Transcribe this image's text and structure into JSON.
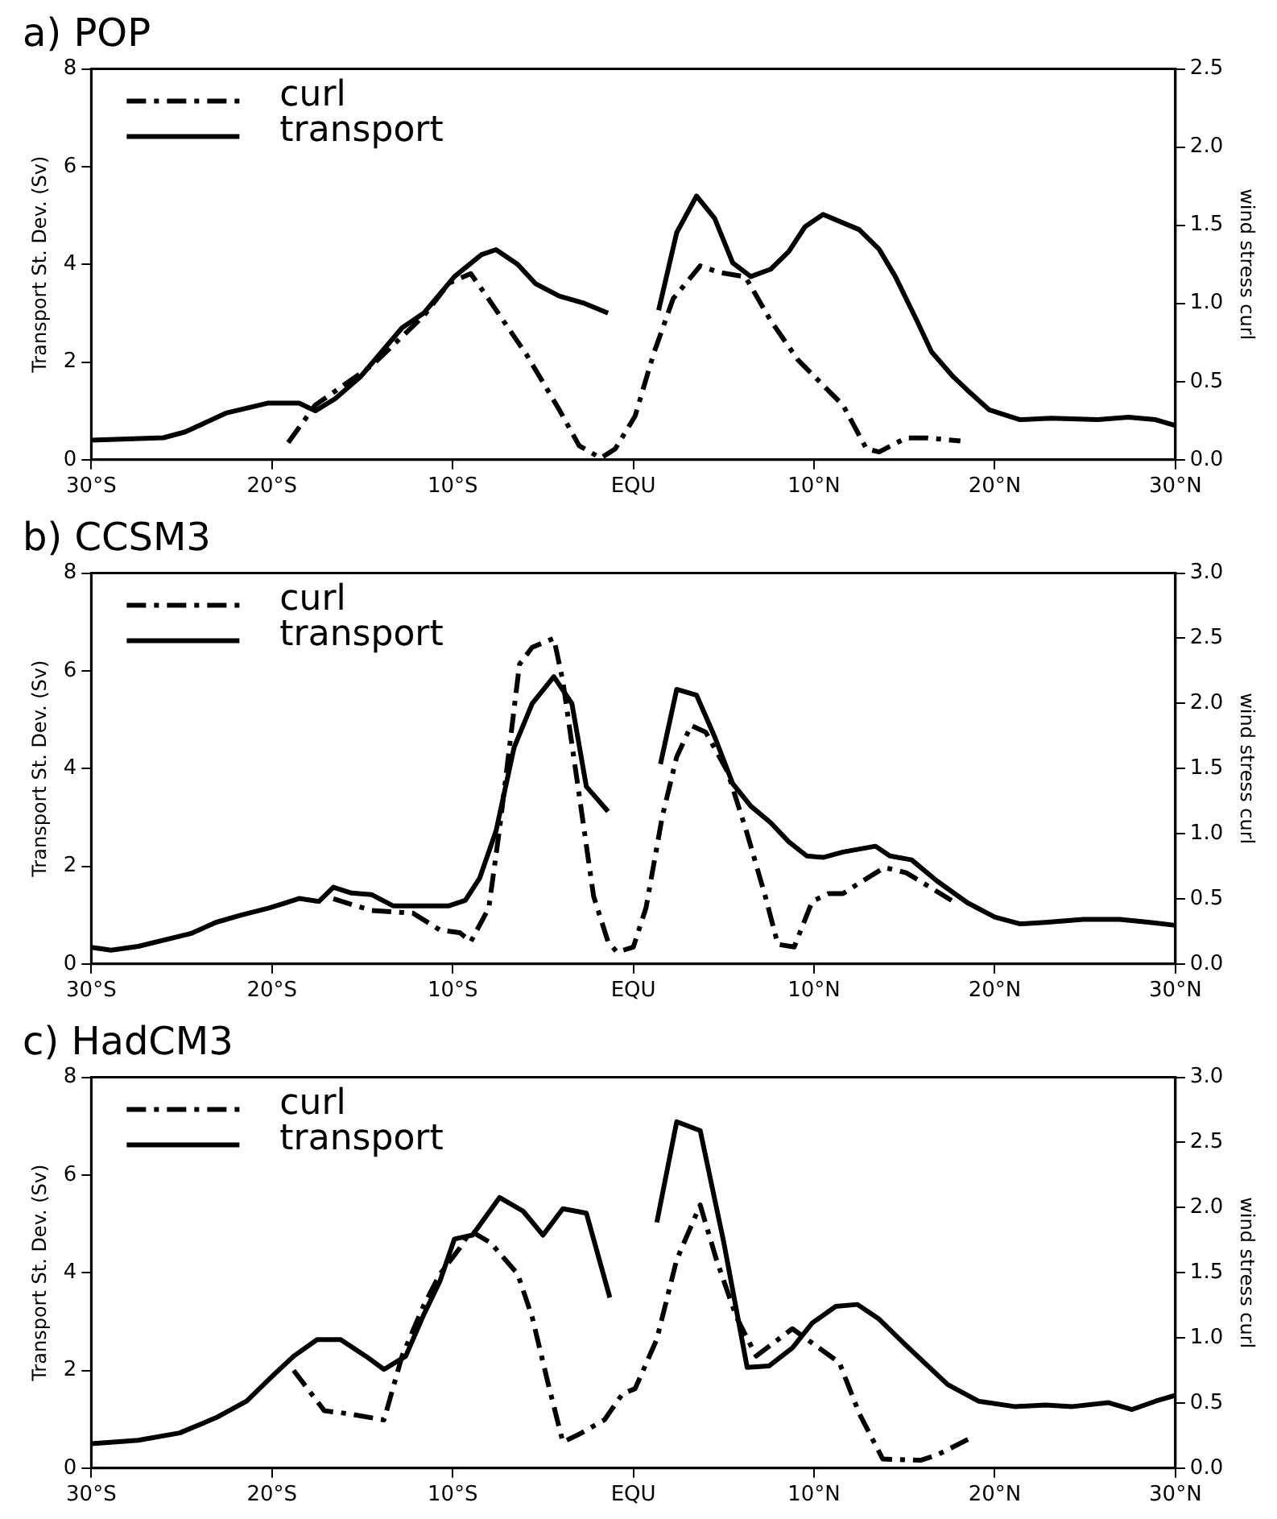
{
  "chart_data": [
    {
      "type": "line",
      "title": "a) POP",
      "ylabel": "Transport St. Dev. (Sv)",
      "y2label": "wind stress curl",
      "legend": "top left",
      "marker": "none",
      "xlim": [
        -30,
        30
      ],
      "xticks": [
        {
          "value": -30,
          "label": "30°S"
        },
        {
          "value": -20,
          "label": "20°S"
        },
        {
          "value": -10,
          "label": "10°S"
        },
        {
          "value": 0,
          "label": "EQU"
        },
        {
          "value": 10,
          "label": "10°N"
        },
        {
          "value": 20,
          "label": "20°N"
        },
        {
          "value": 30,
          "label": "30°N"
        }
      ],
      "ylim": [
        0,
        8
      ],
      "yticks": [
        0,
        2,
        4,
        6,
        8
      ],
      "y2lim": [
        0,
        2.5
      ],
      "y2ticks": [
        {
          "value": 0,
          "label": "0.0"
        },
        {
          "value": 0.5,
          "label": "0.5"
        },
        {
          "value": 1,
          "label": "1.0"
        },
        {
          "value": 1.5,
          "label": "1.5"
        },
        {
          "value": 2,
          "label": "2.0"
        },
        {
          "value": 2.5,
          "label": "2.5"
        }
      ],
      "series": [
        {
          "name": "curl",
          "color": "#000000",
          "axis": "y2",
          "line_style": "dashed",
          "x": [
            -19.1,
            -17.6,
            -14.5,
            -11.6,
            -10.2,
            -9.0,
            -8.2,
            -5.9,
            -4.1,
            -3.0,
            -1.8,
            -1.0,
            0.1,
            1.1,
            2.2,
            3.7,
            4.7,
            6.2,
            7.6,
            9.1,
            10.9,
            11.6,
            12.9,
            13.6,
            15.1,
            16.2,
            18.1
          ],
          "values": [
            0.11,
            0.35,
            0.6,
            0.92,
            1.13,
            1.19,
            1.06,
            0.67,
            0.32,
            0.09,
            0.01,
            0.07,
            0.28,
            0.67,
            1.03,
            1.24,
            1.2,
            1.17,
            0.89,
            0.64,
            0.43,
            0.35,
            0.07,
            0.05,
            0.14,
            0.14,
            0.12
          ]
        },
        {
          "name": "transport",
          "color": "#000000",
          "line_style": "solid",
          "x": [
            -30,
            -26,
            -24.8,
            -22.5,
            -20.2,
            -18.5,
            -17.6,
            -16.5,
            -15.1,
            -12.8,
            -11.6,
            -9.9,
            -8.4,
            -7.6,
            -6.4,
            -5.4,
            -4.1,
            -2.7,
            -1.4,
            0,
            1.4,
            2.4,
            3.5,
            4.5,
            5.5,
            6.5,
            7.6,
            8.6,
            9.5,
            10.5,
            12.5,
            13.6,
            14.5,
            15.7,
            16.5,
            17.7,
            18.5,
            19.7,
            21.4,
            23.1,
            25.7,
            27.4,
            28.9,
            30
          ],
          "values": [
            0.4,
            0.45,
            0.57,
            0.96,
            1.16,
            1.16,
            1.0,
            1.25,
            1.7,
            2.7,
            3.0,
            3.75,
            4.2,
            4.3,
            4.0,
            3.6,
            3.35,
            3.2,
            3.0,
            null,
            3.06,
            4.65,
            5.4,
            4.94,
            4.03,
            3.75,
            3.9,
            4.26,
            4.77,
            5.02,
            4.71,
            4.31,
            3.75,
            2.84,
            2.21,
            1.7,
            1.42,
            1.02,
            0.82,
            0.85,
            0.82,
            0.87,
            0.82,
            0.7
          ]
        }
      ]
    },
    {
      "type": "line",
      "title": "b) CCSM3",
      "ylabel": "Transport St. Dev. (Sv)",
      "y2label": "wind stress curl",
      "legend": "top left",
      "marker": "none",
      "xlim": [
        -30,
        30
      ],
      "xticks": [
        {
          "value": -30,
          "label": "30°S"
        },
        {
          "value": -20,
          "label": "20°S"
        },
        {
          "value": -10,
          "label": "10°S"
        },
        {
          "value": 0,
          "label": "EQU"
        },
        {
          "value": 10,
          "label": "10°N"
        },
        {
          "value": 20,
          "label": "20°N"
        },
        {
          "value": 30,
          "label": "30°N"
        }
      ],
      "ylim": [
        0,
        8
      ],
      "yticks": [
        0,
        2,
        4,
        6,
        8
      ],
      "y2lim": [
        0,
        3
      ],
      "y2ticks": [
        {
          "value": 0,
          "label": "0.0"
        },
        {
          "value": 0.5,
          "label": "0.5"
        },
        {
          "value": 1,
          "label": "1.0"
        },
        {
          "value": 1.5,
          "label": "1.5"
        },
        {
          "value": 2,
          "label": "2.0"
        },
        {
          "value": 2.5,
          "label": "2.5"
        },
        {
          "value": 3,
          "label": "3.0"
        }
      ],
      "series": [
        {
          "name": "curl",
          "color": "#000000",
          "axis": "y2",
          "line_style": "dashed",
          "x": [
            -16.6,
            -14.5,
            -12.2,
            -10.7,
            -9.6,
            -9.0,
            -8.0,
            -7.4,
            -6.3,
            -5.6,
            -4.4,
            -3.9,
            -3.0,
            -2.2,
            -1.4,
            -0.9,
            0,
            0.7,
            1.6,
            2.4,
            3.2,
            4.0,
            5.2,
            6.3,
            7.3,
            8.0,
            8.9,
            9.9,
            10.8,
            11.6,
            12.5,
            13.9,
            15.1,
            17.7
          ],
          "values": [
            0.5,
            0.41,
            0.39,
            0.26,
            0.24,
            0.17,
            0.43,
            1.04,
            2.3,
            2.43,
            2.5,
            2.17,
            1.3,
            0.52,
            0.17,
            0.09,
            0.13,
            0.43,
            1.13,
            1.59,
            1.83,
            1.78,
            1.48,
            1.0,
            0.52,
            0.15,
            0.13,
            0.48,
            0.54,
            0.54,
            0.62,
            0.74,
            0.7,
            0.48
          ]
        },
        {
          "name": "transport",
          "color": "#000000",
          "line_style": "solid",
          "x": [
            -30,
            -28.9,
            -27.4,
            -24.5,
            -23.1,
            -21.7,
            -20.2,
            -19.4,
            -18.5,
            -17.4,
            -16.6,
            -15.6,
            -14.5,
            -13.3,
            -11.6,
            -10.2,
            -9.3,
            -8.5,
            -7.6,
            -6.6,
            -5.6,
            -4.4,
            -3.4,
            -2.6,
            -1.4,
            0,
            1.5,
            2.4,
            3.5,
            4.5,
            5.5,
            6.5,
            7.6,
            8.6,
            9.6,
            10.5,
            11.6,
            13.4,
            14.2,
            15.4,
            16.8,
            18.5,
            20.0,
            21.4,
            22.8,
            24.9,
            26.9,
            28.6,
            30
          ],
          "values": [
            0.34,
            0.28,
            0.36,
            0.62,
            0.85,
            1.0,
            1.14,
            1.23,
            1.34,
            1.28,
            1.57,
            1.45,
            1.42,
            1.19,
            1.19,
            1.19,
            1.3,
            1.76,
            2.72,
            4.43,
            5.33,
            5.88,
            5.33,
            3.63,
            3.12,
            null,
            4.09,
            5.62,
            5.5,
            4.65,
            3.69,
            3.23,
            2.89,
            2.5,
            2.21,
            2.18,
            2.29,
            2.41,
            2.21,
            2.13,
            1.7,
            1.25,
            0.96,
            0.82,
            0.85,
            0.91,
            0.91,
            0.85,
            0.79
          ]
        }
      ]
    },
    {
      "type": "line",
      "title": "c) HadCM3",
      "ylabel": "Transport St. Dev. (Sv)",
      "y2label": "wind stress curl",
      "legend": "top left",
      "marker": "none",
      "xlim": [
        -30,
        30
      ],
      "xticks": [
        {
          "value": -30,
          "label": "30°S"
        },
        {
          "value": -20,
          "label": "20°S"
        },
        {
          "value": -10,
          "label": "10°S"
        },
        {
          "value": 0,
          "label": "EQU"
        },
        {
          "value": 10,
          "label": "10°N"
        },
        {
          "value": 20,
          "label": "20°N"
        },
        {
          "value": 30,
          "label": "30°N"
        }
      ],
      "ylim": [
        0,
        8
      ],
      "yticks": [
        0,
        2,
        4,
        6,
        8
      ],
      "y2lim": [
        0,
        3
      ],
      "y2ticks": [
        {
          "value": 0,
          "label": "0.0"
        },
        {
          "value": 0.5,
          "label": "0.5"
        },
        {
          "value": 1,
          "label": "1.0"
        },
        {
          "value": 1.5,
          "label": "1.5"
        },
        {
          "value": 2,
          "label": "2.0"
        },
        {
          "value": 2.5,
          "label": "2.5"
        },
        {
          "value": 3,
          "label": "3.0"
        }
      ],
      "series": [
        {
          "name": "curl",
          "color": "#000000",
          "axis": "y2",
          "line_style": "dashed",
          "x": [
            -18.8,
            -17.1,
            -15.9,
            -13.8,
            -12.8,
            -11.6,
            -10.7,
            -9.6,
            -9.0,
            -7.9,
            -6.4,
            -5.6,
            -4.7,
            -3.9,
            -3.0,
            -1.6,
            -0.6,
            0.1,
            1.3,
            2.4,
            3.7,
            4.6,
            5.7,
            6.8,
            8.8,
            9.9,
            11.4,
            12.5,
            13.8,
            15.9,
            16.8,
            18.8
          ],
          "values": [
            0.75,
            0.44,
            0.42,
            0.37,
            0.86,
            1.25,
            1.49,
            1.69,
            1.82,
            1.73,
            1.49,
            1.16,
            0.64,
            0.2,
            0.26,
            0.37,
            0.57,
            0.61,
            0.99,
            1.6,
            2.02,
            1.6,
            1.16,
            0.86,
            1.07,
            0.96,
            0.81,
            0.42,
            0.07,
            0.06,
            0.1,
            0.24
          ]
        },
        {
          "name": "transport",
          "color": "#000000",
          "line_style": "solid",
          "x": [
            -30,
            -27.4,
            -25.1,
            -23.1,
            -21.4,
            -19.9,
            -18.8,
            -17.5,
            -16.2,
            -14.8,
            -13.8,
            -12.6,
            -11.6,
            -10.7,
            -9.9,
            -8.9,
            -7.4,
            -6.1,
            -5.0,
            -3.9,
            -2.6,
            -1.3,
            0,
            1.3,
            2.4,
            3.7,
            5.0,
            6.3,
            7.5,
            8.8,
            9.9,
            11.2,
            12.4,
            13.6,
            15.1,
            17.4,
            19.1,
            21.1,
            22.8,
            24.3,
            26.3,
            27.6,
            28.9,
            30
          ],
          "values": [
            0.5,
            0.57,
            0.72,
            1.03,
            1.37,
            1.91,
            2.29,
            2.63,
            2.63,
            2.29,
            2.02,
            2.29,
            3.14,
            3.83,
            4.69,
            4.77,
            5.54,
            5.26,
            4.77,
            5.31,
            5.22,
            3.49,
            null,
            5.03,
            7.09,
            6.91,
            4.63,
            2.06,
            2.09,
            2.46,
            2.97,
            3.31,
            3.35,
            3.05,
            2.51,
            1.71,
            1.37,
            1.26,
            1.29,
            1.26,
            1.34,
            1.2,
            1.37,
            1.49
          ]
        }
      ]
    }
  ]
}
